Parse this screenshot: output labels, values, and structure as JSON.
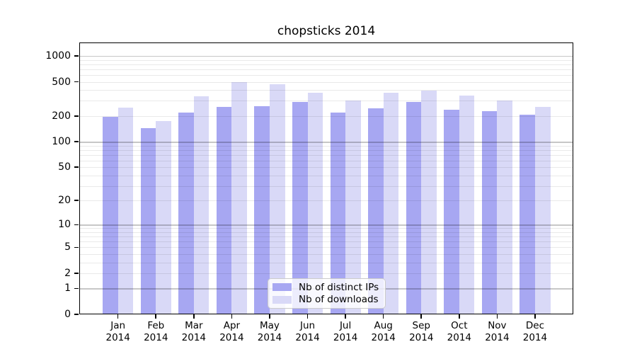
{
  "title": "chopsticks 2014",
  "chart_data": {
    "type": "bar",
    "title": "chopsticks 2014",
    "categories": [
      "Jan 2014",
      "Feb 2014",
      "Mar 2014",
      "Apr 2014",
      "May 2014",
      "Jun 2014",
      "Jul 2014",
      "Aug 2014",
      "Sep 2014",
      "Oct 2014",
      "Nov 2014",
      "Dec 2014"
    ],
    "category_months": [
      "Jan",
      "Feb",
      "Mar",
      "Apr",
      "May",
      "Jun",
      "Jul",
      "Aug",
      "Sep",
      "Oct",
      "Nov",
      "Dec"
    ],
    "category_year": "2014",
    "series": [
      {
        "name": "Nb of distinct IPs",
        "color": "#a7a7f2",
        "values": [
          197,
          143,
          219,
          257,
          260,
          291,
          218,
          247,
          293,
          235,
          227,
          208
        ]
      },
      {
        "name": "Nb of downloads",
        "color": "#d9d9f7",
        "values": [
          252,
          176,
          337,
          495,
          465,
          371,
          303,
          370,
          393,
          347,
          305,
          257
        ]
      }
    ],
    "yscale": "log1p",
    "y_ticks": [
      0,
      1,
      2,
      5,
      10,
      20,
      50,
      100,
      200,
      500,
      1000
    ],
    "ylim": [
      0,
      1430
    ],
    "xlabel": "",
    "ylabel": "",
    "grid": true,
    "legend_position": "lower-center-inside"
  },
  "colors": {
    "background": "#ffffff",
    "spine": "#000000",
    "grid_major": "#c8c8c8",
    "grid_minor": "#e9e9e9",
    "legend_border": "#cbcbcb",
    "series_ips": "#a7a7f2",
    "series_downloads": "#d9d9f7"
  }
}
